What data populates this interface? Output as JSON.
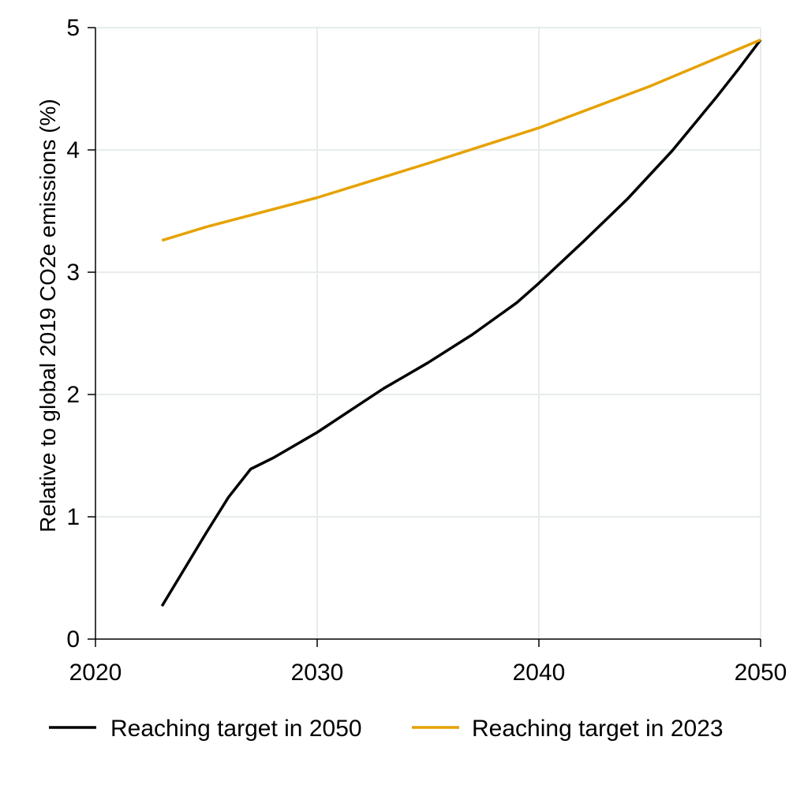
{
  "chart_data": {
    "type": "line",
    "title": "",
    "xlabel": "",
    "ylabel": "Relative to global 2019 CO2e emissions (%)",
    "xlim": [
      2020,
      2050
    ],
    "ylim": [
      0,
      5
    ],
    "xticks": [
      2020,
      2030,
      2040,
      2050
    ],
    "yticks": [
      0,
      1,
      2,
      3,
      4,
      5
    ],
    "grid": true,
    "legend_position": "bottom",
    "series": [
      {
        "name": "Reaching target in 2050",
        "color": "#000000",
        "x": [
          2023,
          2024,
          2025,
          2026,
          2027,
          2028,
          2030,
          2032,
          2033,
          2035,
          2037,
          2039,
          2040,
          2042,
          2044,
          2046,
          2048,
          2049,
          2050
        ],
        "y": [
          0.27,
          0.57,
          0.87,
          1.16,
          1.39,
          1.48,
          1.69,
          1.93,
          2.05,
          2.26,
          2.49,
          2.75,
          2.91,
          3.25,
          3.6,
          3.99,
          4.43,
          4.66,
          4.9
        ]
      },
      {
        "name": "Reaching target in 2023",
        "color": "#E6A100",
        "x": [
          2023,
          2025,
          2030,
          2035,
          2040,
          2045,
          2050
        ],
        "y": [
          3.26,
          3.37,
          3.61,
          3.89,
          4.18,
          4.52,
          4.9
        ]
      }
    ]
  }
}
